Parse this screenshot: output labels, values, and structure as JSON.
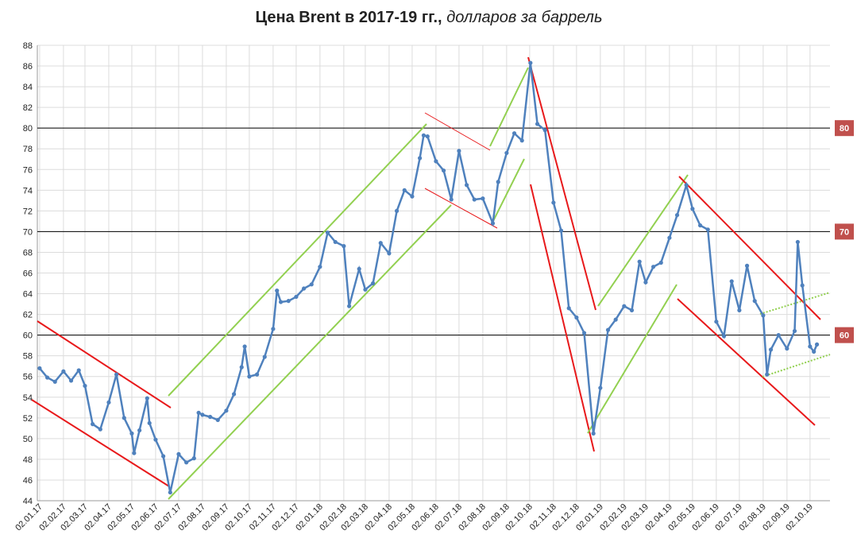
{
  "chart_data": {
    "type": "line",
    "title": "Цена Brent в 2017-19 гг.,",
    "subtitle": "долларов за баррель",
    "color": "#4f81bd",
    "x": [
      "02.01.17",
      "12.01.17",
      "22.01.17",
      "02.02.17",
      "12.02.17",
      "22.02.17",
      "02.03.17",
      "12.03.17",
      "22.03.17",
      "02.04.17",
      "12.04.17",
      "22.04.17",
      "02.05.17",
      "05.05.17",
      "12.05.17",
      "22.05.17",
      "25.05.17",
      "02.06.17",
      "12.06.17",
      "21.06.17",
      "02.07.17",
      "12.07.17",
      "22.07.17",
      "28.07.17",
      "02.08.17",
      "12.08.17",
      "22.08.17",
      "02.09.17",
      "12.09.17",
      "22.09.17",
      "26.09.17",
      "02.10.17",
      "12.10.17",
      "22.10.17",
      "02.11.17",
      "07.11.17",
      "12.11.17",
      "22.11.17",
      "02.12.17",
      "12.12.17",
      "22.12.17",
      "02.01.18",
      "12.01.18",
      "22.01.18",
      "02.02.18",
      "09.02.18",
      "22.02.18",
      "02.03.18",
      "12.03.18",
      "22.03.18",
      "02.04.18",
      "12.04.18",
      "22.04.18",
      "02.05.18",
      "12.05.18",
      "17.05.18",
      "22.05.18",
      "02.06.18",
      "12.06.18",
      "22.06.18",
      "02.07.18",
      "12.07.18",
      "22.07.18",
      "02.08.18",
      "15.08.18",
      "22.08.18",
      "02.09.18",
      "12.09.18",
      "22.09.18",
      "03.10.18",
      "12.10.18",
      "22.10.18",
      "02.11.18",
      "12.11.18",
      "22.11.18",
      "02.12.18",
      "12.12.18",
      "24.12.18",
      "02.01.19",
      "12.01.19",
      "22.01.19",
      "02.02.19",
      "12.02.19",
      "22.02.19",
      "02.03.19",
      "12.03.19",
      "22.03.19",
      "02.04.19",
      "12.04.19",
      "24.04.19",
      "02.05.19",
      "12.05.19",
      "22.05.19",
      "02.06.19",
      "12.06.19",
      "22.06.19",
      "02.07.19",
      "12.07.19",
      "22.07.19",
      "02.08.19",
      "07.08.19",
      "12.08.19",
      "22.08.19",
      "02.09.19",
      "12.09.19",
      "16.09.19",
      "22.09.19",
      "02.10.19",
      "07.10.19",
      "11.10.19"
    ],
    "values": [
      56.8,
      55.9,
      55.5,
      56.5,
      55.6,
      56.6,
      55.1,
      51.4,
      50.9,
      53.5,
      56.2,
      52.0,
      50.5,
      48.6,
      50.8,
      53.9,
      51.5,
      49.9,
      48.3,
      44.8,
      48.5,
      47.7,
      48.1,
      52.5,
      52.3,
      52.1,
      51.8,
      52.7,
      54.3,
      56.9,
      58.9,
      56.0,
      56.2,
      57.9,
      60.6,
      64.3,
      63.2,
      63.3,
      63.7,
      64.5,
      64.9,
      66.6,
      69.9,
      69.0,
      68.6,
      62.8,
      66.4,
      64.4,
      65.0,
      68.9,
      67.9,
      72.0,
      74.0,
      73.4,
      77.1,
      79.3,
      79.2,
      76.8,
      75.9,
      73.1,
      77.8,
      74.5,
      73.1,
      73.2,
      70.8,
      74.8,
      77.6,
      79.5,
      78.8,
      86.3,
      80.4,
      79.8,
      72.8,
      70.1,
      62.6,
      61.7,
      60.2,
      50.5,
      54.9,
      60.5,
      61.5,
      62.8,
      62.4,
      67.1,
      65.1,
      66.6,
      67.0,
      69.4,
      71.6,
      74.5,
      72.2,
      70.6,
      70.2,
      61.3,
      59.9,
      65.2,
      62.4,
      66.7,
      63.3,
      61.9,
      56.2,
      58.6,
      60.0,
      58.7,
      60.4,
      69.0,
      64.8,
      58.9,
      58.4,
      59.1
    ],
    "xlim": [
      "30.12.16",
      "28.10.19"
    ],
    "xticks": [
      "02.01.17",
      "02.02.17",
      "02.03.17",
      "02.04.17",
      "02.05.17",
      "02.06.17",
      "02.07.17",
      "02.08.17",
      "02.09.17",
      "02.10.17",
      "02.11.17",
      "02.12.17",
      "02.01.18",
      "02.02.18",
      "02.03.18",
      "02.04.18",
      "02.05.18",
      "02.06.18",
      "02.07.18",
      "02.08.18",
      "02.09.18",
      "02.10.18",
      "02.11.18",
      "02.12.18",
      "02.01.19",
      "02.02.19",
      "02.03.19",
      "02.04.19",
      "02.05.19",
      "02.06.19",
      "02.07.19",
      "02.08.19",
      "02.09.19",
      "02.10.19"
    ],
    "ylim": [
      44,
      88
    ],
    "yticks": [
      44,
      46,
      48,
      50,
      52,
      54,
      56,
      58,
      60,
      62,
      64,
      66,
      68,
      70,
      72,
      74,
      76,
      78,
      80,
      82,
      84,
      86,
      88
    ],
    "grid": true,
    "reference_lines": [
      80,
      70,
      60
    ],
    "reference_color": "#c0504d"
  }
}
